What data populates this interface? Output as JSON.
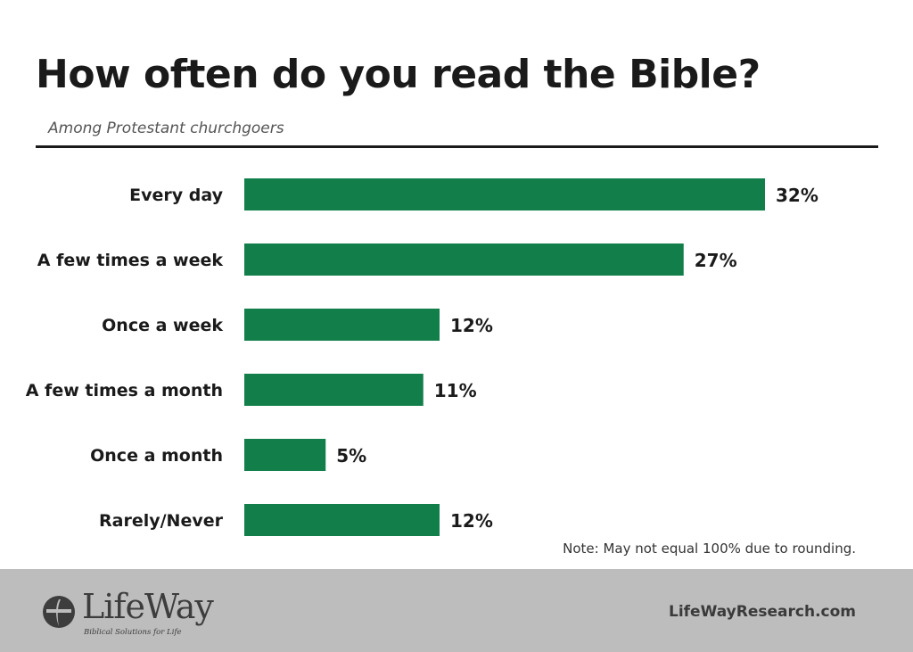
{
  "chart_data": {
    "type": "bar",
    "orientation": "horizontal",
    "title": "How often do you read the Bible?",
    "subtitle": "Among Protestant churchgoers",
    "categories": [
      "Every day",
      "A few times a week",
      "Once a week",
      "A few times a month",
      "Once a month",
      "Rarely/Never"
    ],
    "values": [
      32,
      27,
      12,
      11,
      5,
      12
    ],
    "value_labels": [
      "32%",
      "27%",
      "12%",
      "11%",
      "5%",
      "12%"
    ],
    "unit": "%",
    "bar_color": "#127f4a",
    "grid": false,
    "legend": "none"
  },
  "note": "Note: May not equal 100% due to rounding.",
  "footer": {
    "brand_name": "LifeWay",
    "tagline": "Biblical Solutions for Life",
    "website": "LifeWayResearch.com"
  },
  "colors": {
    "footer_bg": "#bdbdbd",
    "text_dark": "#1a1a1a"
  }
}
